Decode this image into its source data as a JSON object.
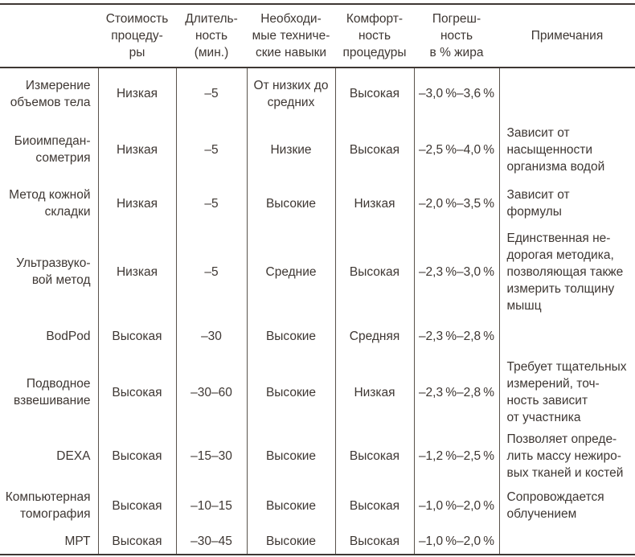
{
  "colors": {
    "text": "#3e3733",
    "border": "#59524b",
    "border_strong": "#3e3733",
    "background": "#ffffff"
  },
  "table": {
    "headers": {
      "method": "",
      "cost": "Стоимость\nпроцеду-\nры",
      "duration": "Длитель-\nность\n(мин.)",
      "skills": "Необходи-\nмые техниче-\nские навыки",
      "comfort": "Комфорт-\nность\nпроцедуры",
      "error": "Погреш-\nность\nв % жира",
      "notes": "Примечания"
    },
    "rows": [
      {
        "method": "Измерение\nобъемов тела",
        "cost": "Низкая",
        "duration": "–5",
        "skills": "От низких до\nсредних",
        "comfort": "Высокая",
        "error": "–3,0 %–3,6 %",
        "notes": ""
      },
      {
        "method": "Биоимпедан-\nсометрия",
        "cost": "Низкая",
        "duration": "–5",
        "skills": "Низкие",
        "comfort": "Высокая",
        "error": "–2,5 %–4,0 %",
        "notes": "Зависит от\nнасыщенности\nорганизма водой"
      },
      {
        "method": "Метод кожной\nскладки",
        "cost": "Низкая",
        "duration": "–5",
        "skills": "Высокие",
        "comfort": "Низкая",
        "error": "–2,0 %–3,5 %",
        "notes": "Зависит от\nформулы"
      },
      {
        "method": "Ультразвуко-\nвой метод",
        "cost": "Низкая",
        "duration": "–5",
        "skills": "Средние",
        "comfort": "Высокая",
        "error": "–2,3 %–3,0 %",
        "notes": "Единственная не-\nдорогая методика,\nпозволяющая также\nизмерить толщину\nмышц"
      },
      {
        "method": "BodPod",
        "cost": "Высокая",
        "duration": "–30",
        "skills": "Высокие",
        "comfort": "Средняя",
        "error": "–2,3 %–2,8 %",
        "notes": ""
      },
      {
        "method": "Подводное\nвзвешивание",
        "cost": "Высокая",
        "duration": "–30–60",
        "skills": "Высокие",
        "comfort": "Низкая",
        "error": "–2,3 %–2,8 %",
        "notes": "Требует тщательных\nизмерений, точ-\nность зависит\nот участника"
      },
      {
        "method": "DEXA",
        "cost": "Высокая",
        "duration": "–15–30",
        "skills": "Высокие",
        "comfort": "Высокая",
        "error": "–1,2 %–2,5 %",
        "notes": "Позволяет опреде-\nлить массу нежиро-\nвых тканей и костей"
      },
      {
        "method": "Компьютерная\nтомография",
        "cost": "Высокая",
        "duration": "–10–15",
        "skills": "Высокие",
        "comfort": "Высокая",
        "error": "–1,0 %–2,0 %",
        "notes": "Сопровождается\nоблучением"
      },
      {
        "method": "МРТ",
        "cost": "Высокая",
        "duration": "–30–45",
        "skills": "Высокие",
        "comfort": "Высокая",
        "error": "–1,0 %–2,0 %",
        "notes": ""
      }
    ]
  }
}
